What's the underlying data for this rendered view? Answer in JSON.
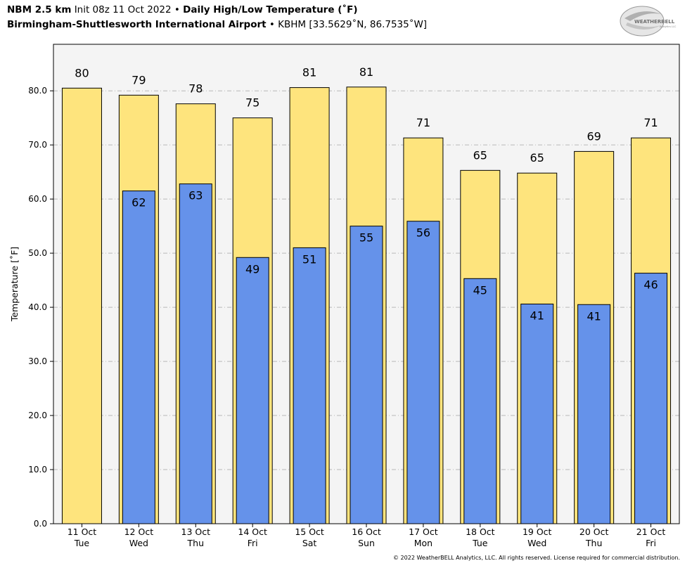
{
  "header": {
    "model": "NBM 2.5 km",
    "init": "Init 08z 11 Oct 2022",
    "sep": "•",
    "product": "Daily High/Low Temperature (˚F)",
    "station_name": "Birmingham-Shuttlesworth International Airport",
    "station_info": "KBHM [33.5629˚N, 86.7535˚W]"
  },
  "logo": {
    "text": "WEATHERBELL",
    "subtext": "Analytics LLC"
  },
  "copyright": "© 2022 WeatherBELL Analytics, LLC. All rights reserved. License required for commercial distribution.",
  "colors": {
    "high_bar": "#fee47d",
    "low_bar": "#6592ea",
    "plot_bg": "#f4f4f4",
    "grid": "#b8b8b8"
  },
  "chart_data": {
    "type": "bar",
    "title": "Daily High/Low Temperature (˚F)",
    "ylabel": "Temperature [˚F]",
    "ylim": [
      0,
      88.6
    ],
    "yticks": [
      "0.0",
      "10.0",
      "20.0",
      "30.0",
      "40.0",
      "50.0",
      "60.0",
      "70.0",
      "80.0"
    ],
    "grid": true,
    "categories": [
      {
        "date": "11 Oct",
        "day": "Tue"
      },
      {
        "date": "12 Oct",
        "day": "Wed"
      },
      {
        "date": "13 Oct",
        "day": "Thu"
      },
      {
        "date": "14 Oct",
        "day": "Fri"
      },
      {
        "date": "15 Oct",
        "day": "Sat"
      },
      {
        "date": "16 Oct",
        "day": "Sun"
      },
      {
        "date": "17 Oct",
        "day": "Mon"
      },
      {
        "date": "18 Oct",
        "day": "Tue"
      },
      {
        "date": "19 Oct",
        "day": "Wed"
      },
      {
        "date": "20 Oct",
        "day": "Thu"
      },
      {
        "date": "21 Oct",
        "day": "Fri"
      }
    ],
    "series": [
      {
        "values": [
          80.5,
          79.2,
          77.6,
          75.0,
          80.6,
          80.7,
          71.3,
          65.3,
          64.8,
          68.8,
          71.3
        ],
        "labels": [
          "80",
          "79",
          "78",
          "75",
          "81",
          "81",
          "71",
          "65",
          "65",
          "69",
          "71"
        ]
      },
      {
        "values": [
          null,
          61.5,
          62.8,
          49.2,
          51.0,
          55.0,
          55.9,
          45.3,
          40.6,
          40.5,
          46.3
        ],
        "labels": [
          "",
          "62",
          "63",
          "49",
          "51",
          "55",
          "56",
          "45",
          "41",
          "41",
          "46"
        ]
      }
    ]
  }
}
